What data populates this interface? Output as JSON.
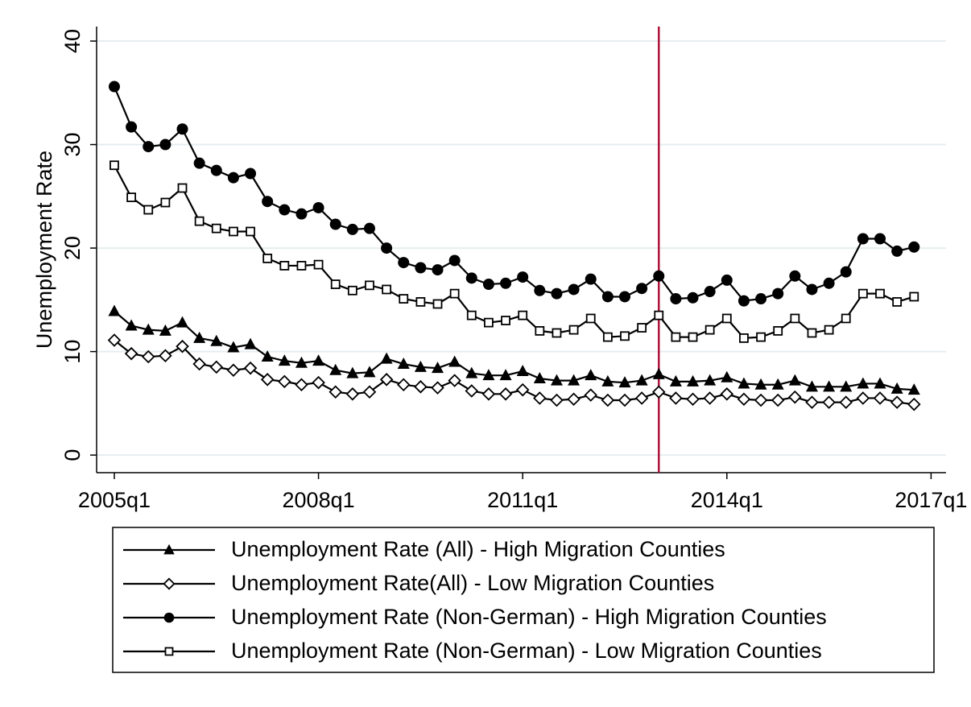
{
  "chart_data": {
    "type": "line",
    "ylabel": "Unemployment Rate",
    "x": [
      2005,
      2005.25,
      2005.5,
      2005.75,
      2006,
      2006.25,
      2006.5,
      2006.75,
      2007,
      2007.25,
      2007.5,
      2007.75,
      2008,
      2008.25,
      2008.5,
      2008.75,
      2009,
      2009.25,
      2009.5,
      2009.75,
      2010,
      2010.25,
      2010.5,
      2010.75,
      2011,
      2011.25,
      2011.5,
      2011.75,
      2012,
      2012.25,
      2012.5,
      2012.75,
      2013,
      2013.25,
      2013.5,
      2013.75,
      2014,
      2014.25,
      2014.5,
      2014.75,
      2015,
      2015.25,
      2015.5,
      2015.75,
      2016,
      2016.25,
      2016.5,
      2016.75
    ],
    "xlim": [
      2004.74,
      2017.22
    ],
    "xticks": [
      {
        "value": 2005,
        "label": "2005q1"
      },
      {
        "value": 2008,
        "label": "2008q1"
      },
      {
        "value": 2011,
        "label": "2011q1"
      },
      {
        "value": 2014,
        "label": "2014q1"
      },
      {
        "value": 2017,
        "label": "2017q1"
      }
    ],
    "ylim": [
      -1.7,
      41.4
    ],
    "yticks": [
      0,
      10,
      20,
      30,
      40
    ],
    "grid": true,
    "legend": "bottom",
    "reference_line": {
      "x": 2013,
      "color": "#b0123b"
    },
    "series": [
      {
        "name": "Unemployment Rate (All) - High Migration Counties",
        "color": "#000000",
        "marker": "triangle",
        "values": [
          13.9,
          12.5,
          12.1,
          12.0,
          12.8,
          11.3,
          11.0,
          10.4,
          10.7,
          9.5,
          9.1,
          8.9,
          9.1,
          8.2,
          7.9,
          8.0,
          9.3,
          8.8,
          8.5,
          8.4,
          9.0,
          7.9,
          7.7,
          7.7,
          8.1,
          7.4,
          7.2,
          7.2,
          7.7,
          7.1,
          7.0,
          7.2,
          7.8,
          7.1,
          7.1,
          7.2,
          7.5,
          6.9,
          6.8,
          6.8,
          7.2,
          6.6,
          6.6,
          6.6,
          6.9,
          6.9,
          6.4,
          6.3
        ]
      },
      {
        "name": "Unemployment Rate(All) - Low Migration Counties",
        "color": "#000000",
        "marker": "diamond",
        "values": [
          11.1,
          9.8,
          9.5,
          9.6,
          10.5,
          8.8,
          8.5,
          8.2,
          8.4,
          7.3,
          7.1,
          6.8,
          7.0,
          6.1,
          5.9,
          6.1,
          7.3,
          6.8,
          6.6,
          6.5,
          7.2,
          6.2,
          5.9,
          5.9,
          6.3,
          5.5,
          5.3,
          5.4,
          5.8,
          5.3,
          5.3,
          5.5,
          6.1,
          5.5,
          5.4,
          5.5,
          5.9,
          5.4,
          5.3,
          5.3,
          5.6,
          5.1,
          5.1,
          5.1,
          5.5,
          5.5,
          5.1,
          4.9
        ]
      },
      {
        "name": "Unemployment Rate (Non-German) - High Migration Counties",
        "color": "#000000",
        "marker": "circle",
        "values": [
          35.6,
          31.7,
          29.8,
          30.0,
          31.5,
          28.2,
          27.5,
          26.8,
          27.2,
          24.5,
          23.7,
          23.3,
          23.9,
          22.3,
          21.8,
          21.9,
          20.0,
          18.6,
          18.1,
          17.9,
          18.8,
          17.1,
          16.5,
          16.6,
          17.2,
          15.9,
          15.6,
          16.0,
          17.0,
          15.3,
          15.3,
          16.1,
          17.3,
          15.1,
          15.2,
          15.8,
          16.9,
          14.9,
          15.1,
          15.6,
          17.3,
          16.0,
          16.6,
          17.7,
          20.9,
          20.9,
          19.7,
          20.1
        ]
      },
      {
        "name": "Unemployment Rate (Non-German) - Low Migration Counties",
        "color": "#000000",
        "marker": "square",
        "values": [
          28.0,
          24.9,
          23.7,
          24.4,
          25.8,
          22.6,
          21.9,
          21.6,
          21.6,
          19.0,
          18.3,
          18.3,
          18.4,
          16.5,
          15.9,
          16.4,
          16.0,
          15.1,
          14.8,
          14.6,
          15.6,
          13.5,
          12.8,
          13.0,
          13.5,
          12.0,
          11.8,
          12.1,
          13.2,
          11.4,
          11.5,
          12.3,
          13.5,
          11.4,
          11.4,
          12.1,
          13.2,
          11.3,
          11.4,
          12.0,
          13.2,
          11.8,
          12.1,
          13.2,
          15.6,
          15.6,
          14.8,
          15.3
        ]
      }
    ]
  }
}
